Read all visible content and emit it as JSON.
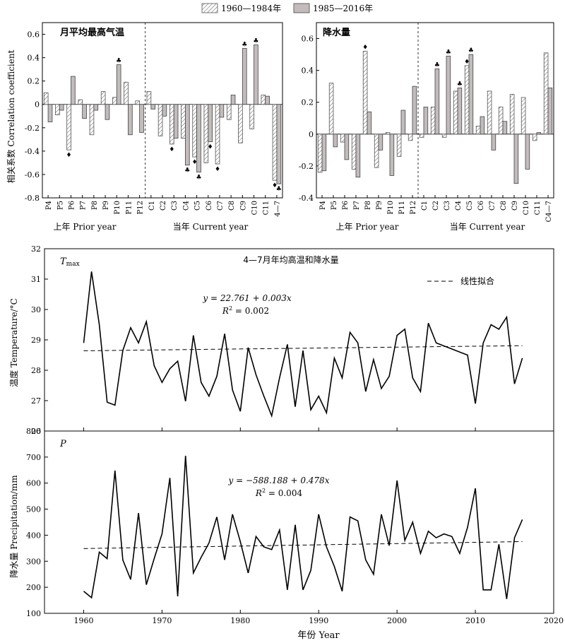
{
  "legend": {
    "period1": "1960—1984年",
    "period2": "1985—2016年"
  },
  "chart_data": [
    {
      "type": "bar",
      "title": "月平均最高气温",
      "ylabel": "相关系数 Correlation coefficient",
      "ylim": [
        -0.8,
        0.7
      ],
      "yticks": [
        "-0.8",
        "-0.6",
        "-0.4",
        "-0.2",
        "0",
        "0.2",
        "0.4",
        "0.6"
      ],
      "categories": [
        "P4",
        "P5",
        "P6",
        "P7",
        "P8",
        "P9",
        "P10",
        "P11",
        "P12",
        "C1",
        "C2",
        "C3",
        "C4",
        "C5",
        "C6",
        "C7",
        "C8",
        "C9",
        "C10",
        "C11",
        "4—7"
      ],
      "series": [
        {
          "name": "1960—1984年",
          "values": [
            0.1,
            -0.09,
            -0.39,
            0.04,
            -0.26,
            0.11,
            0.06,
            0.19,
            0.03,
            0.11,
            -0.27,
            -0.34,
            -0.29,
            -0.45,
            -0.5,
            -0.51,
            -0.13,
            -0.33,
            -0.21,
            0.08,
            -0.65
          ]
        },
        {
          "name": "1985—2016年",
          "values": [
            -0.15,
            -0.05,
            0.24,
            -0.12,
            -0.05,
            -0.13,
            0.34,
            -0.26,
            -0.24,
            -0.04,
            -0.1,
            -0.29,
            -0.52,
            -0.58,
            -0.32,
            -0.11,
            0.08,
            0.48,
            0.51,
            0.07,
            -0.68
          ]
        }
      ],
      "marks": [
        {
          "index": 2,
          "series": 0,
          "symbol": "♦"
        },
        {
          "index": 6,
          "series": 1,
          "symbol": "♣"
        },
        {
          "index": 11,
          "series": 0,
          "symbol": "♦"
        },
        {
          "index": 12,
          "series": 1,
          "symbol": "♣"
        },
        {
          "index": 13,
          "series": 0,
          "symbol": "♦"
        },
        {
          "index": 13,
          "series": 1,
          "symbol": "♣"
        },
        {
          "index": 14,
          "series": 1,
          "symbol": "♦"
        },
        {
          "index": 15,
          "series": 0,
          "symbol": "♦"
        },
        {
          "index": 17,
          "series": 1,
          "symbol": "♣"
        },
        {
          "index": 18,
          "series": 1,
          "symbol": "♣"
        },
        {
          "index": 20,
          "series": 0,
          "symbol": "♦"
        },
        {
          "index": 20,
          "series": 1,
          "symbol": "♣"
        }
      ],
      "divider_after": 8,
      "group_labels": [
        "上年 Prior year",
        "当年 Current year"
      ]
    },
    {
      "type": "bar",
      "title": "降水量",
      "ylabel": "",
      "ylim": [
        -0.4,
        0.7
      ],
      "yticks": [
        "-0.4",
        "-0.2",
        "0",
        "0.2",
        "0.4",
        "0.6"
      ],
      "categories": [
        "P4",
        "P5",
        "P6",
        "P7",
        "P8",
        "P9",
        "P10",
        "P11",
        "P12",
        "C1",
        "C2",
        "C3",
        "C4",
        "C5",
        "C6",
        "C7",
        "C8",
        "C9",
        "C10",
        "C11",
        "C4—7"
      ],
      "series": [
        {
          "name": "1960—1984年",
          "values": [
            -0.24,
            0.32,
            -0.05,
            -0.22,
            0.52,
            -0.21,
            0.01,
            -0.14,
            -0.04,
            -0.02,
            0.17,
            -0.02,
            0.27,
            0.43,
            0.05,
            0.27,
            0.17,
            0.25,
            0.23,
            -0.04,
            0.51
          ]
        },
        {
          "name": "1985—2016年",
          "values": [
            -0.23,
            -0.08,
            -0.16,
            -0.27,
            0.14,
            -0.1,
            -0.26,
            0.15,
            0.3,
            0.17,
            0.41,
            0.49,
            0.29,
            0.5,
            0.11,
            -0.1,
            0.08,
            -0.31,
            -0.22,
            0.01,
            0.29
          ]
        }
      ],
      "marks": [
        {
          "index": 4,
          "series": 0,
          "symbol": "♦"
        },
        {
          "index": 10,
          "series": 1,
          "symbol": "♣"
        },
        {
          "index": 11,
          "series": 1,
          "symbol": "♣"
        },
        {
          "index": 12,
          "series": 1,
          "symbol": "♣"
        },
        {
          "index": 13,
          "series": 0,
          "symbol": "♦"
        },
        {
          "index": 13,
          "series": 1,
          "symbol": "♣"
        }
      ],
      "divider_after": 8,
      "group_labels": [
        "上年 Prior year",
        "当年 Current year"
      ]
    },
    {
      "type": "line",
      "title": "4—7月年均高温和降水量",
      "panel_label": "T",
      "panel_label_sub": "max",
      "ylabel": "温度 Temperature/°C",
      "ylim": [
        26,
        32
      ],
      "yticks": [
        "26",
        "27",
        "28",
        "29",
        "30",
        "31",
        "32"
      ],
      "fit_legend": "线性拟合",
      "equation": "y = 22.761 + 0.003x",
      "r2_label": "R",
      "r2_value": " = 0.002",
      "x": [
        1960,
        1961,
        1962,
        1963,
        1964,
        1965,
        1966,
        1967,
        1968,
        1969,
        1970,
        1971,
        1972,
        1973,
        1974,
        1975,
        1976,
        1977,
        1978,
        1979,
        1980,
        1981,
        1982,
        1983,
        1984,
        1985,
        1986,
        1987,
        1988,
        1989,
        1990,
        1991,
        1992,
        1993,
        1994,
        1995,
        1996,
        1997,
        1998,
        1999,
        2000,
        2001,
        2002,
        2003,
        2004,
        2005,
        2006,
        2007,
        2008,
        2009,
        2010,
        2011,
        2012,
        2013,
        2014,
        2015,
        2016
      ],
      "values": [
        28.9,
        31.25,
        29.5,
        26.95,
        26.85,
        28.65,
        29.4,
        28.9,
        29.6,
        28.15,
        27.6,
        28.05,
        28.3,
        26.98,
        29.15,
        27.6,
        27.15,
        27.8,
        29.2,
        27.35,
        26.65,
        28.75,
        27.85,
        27.15,
        26.5,
        27.75,
        28.85,
        26.8,
        28.65,
        26.7,
        27.15,
        26.6,
        28.4,
        27.75,
        29.25,
        28.9,
        27.3,
        28.35,
        27.4,
        27.8,
        29.15,
        29.35,
        27.75,
        27.3,
        29.55,
        28.9,
        28.8,
        28.7,
        28.6,
        28.5,
        26.9,
        28.9,
        29.5,
        29.35,
        29.75,
        27.55,
        28.4
      ],
      "fit": {
        "intercept": 22.761,
        "slope": 0.003
      }
    },
    {
      "type": "line",
      "panel_label": "P",
      "ylabel": "降水量 Precipitation/mm",
      "xlabel": "年份 Year",
      "ylim": [
        100,
        800
      ],
      "xlim": [
        1955,
        2020
      ],
      "yticks": [
        "100",
        "200",
        "300",
        "400",
        "500",
        "600",
        "700",
        "800"
      ],
      "xticks": [
        "1960",
        "1970",
        "1980",
        "1990",
        "2000",
        "2010",
        "2020"
      ],
      "equation": "y = −588.188 + 0.478x",
      "r2_label": "R",
      "r2_value": " = 0.004",
      "x": [
        1960,
        1961,
        1962,
        1963,
        1964,
        1965,
        1966,
        1967,
        1968,
        1969,
        1970,
        1971,
        1972,
        1973,
        1974,
        1975,
        1976,
        1977,
        1978,
        1979,
        1980,
        1981,
        1982,
        1983,
        1984,
        1985,
        1986,
        1987,
        1988,
        1989,
        1990,
        1991,
        1992,
        1993,
        1994,
        1995,
        1996,
        1997,
        1998,
        1999,
        2000,
        2001,
        2002,
        2003,
        2004,
        2005,
        2006,
        2007,
        2008,
        2009,
        2010,
        2011,
        2012,
        2013,
        2014,
        2015,
        2016
      ],
      "values": [
        185,
        160,
        335,
        310,
        648,
        305,
        230,
        485,
        210,
        310,
        405,
        620,
        165,
        705,
        255,
        315,
        370,
        470,
        305,
        480,
        375,
        255,
        395,
        355,
        345,
        420,
        190,
        440,
        190,
        265,
        480,
        355,
        280,
        185,
        470,
        455,
        305,
        250,
        480,
        360,
        610,
        380,
        450,
        330,
        415,
        390,
        405,
        395,
        330,
        430,
        580,
        190,
        190,
        365,
        155,
        390,
        460
      ],
      "fit": {
        "intercept": -588.188,
        "slope": 0.478
      }
    }
  ]
}
